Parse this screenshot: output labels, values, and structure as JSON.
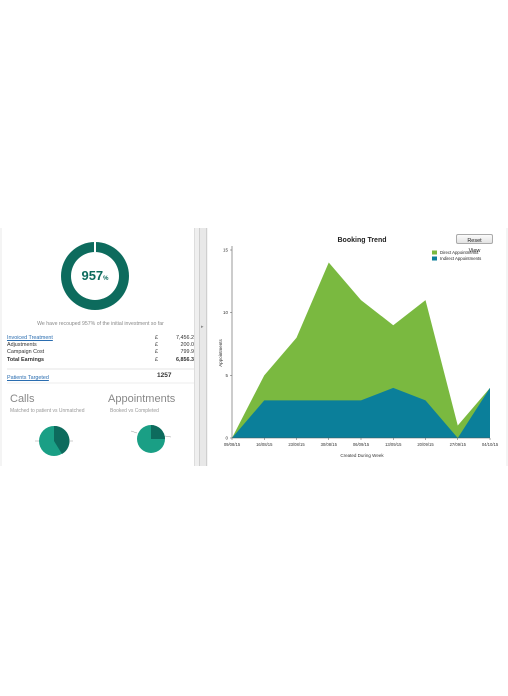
{
  "summary": {
    "roi_value": "957",
    "roi_unit": "%",
    "recoup_text": "We have recouped 957% of the initial investment so far",
    "rows": [
      {
        "label": "Invoiced Treatment",
        "currency": "£",
        "amount": "7,456.25",
        "link": true,
        "bold": false
      },
      {
        "label": "Adjustments",
        "currency": "£",
        "amount": "200.00",
        "link": false,
        "bold": false
      },
      {
        "label": "Campaign Cost",
        "currency": "£",
        "amount": "799.95",
        "link": false,
        "bold": false
      },
      {
        "label": "Total Earnings",
        "currency": "£",
        "amount": "6,856.30",
        "link": false,
        "bold": true
      }
    ],
    "patients_label": "Patients Targeted",
    "patients_value": "1257"
  },
  "calls": {
    "title": "Calls",
    "subtitle": "Matched to patient vs Unmatched"
  },
  "appointments": {
    "title": "Appointments",
    "subtitle": "Booked vs Completed"
  },
  "booking": {
    "reset_label": "Reset View"
  },
  "chart_data": {
    "type": "area",
    "title": "Booking Trend",
    "xlabel": "Created During Week",
    "ylabel": "Appointments",
    "x": [
      "09/08/15",
      "16/08/15",
      "23/08/15",
      "30/08/15",
      "06/09/15",
      "13/09/15",
      "20/09/15",
      "27/09/15",
      "04/10/15"
    ],
    "ylim": [
      0,
      15
    ],
    "yticks": [
      0,
      5,
      10,
      15
    ],
    "stacked": true,
    "series": [
      {
        "name": "Indirect Appointments",
        "color": "#0b7f9a",
        "values": [
          0,
          3,
          3,
          3,
          3,
          4,
          3,
          0,
          4
        ]
      },
      {
        "name": "Direct Appointments",
        "color": "#7ab940",
        "values": [
          0,
          2,
          5,
          11,
          8,
          5,
          8,
          1,
          0
        ]
      }
    ],
    "legend": "top-right",
    "grid": false
  },
  "colors": {
    "donut": "#0d6b5d",
    "donut_inner": "#ffffff",
    "pie_dark": "#0d6b5d",
    "pie_light": "#1a9f85"
  }
}
